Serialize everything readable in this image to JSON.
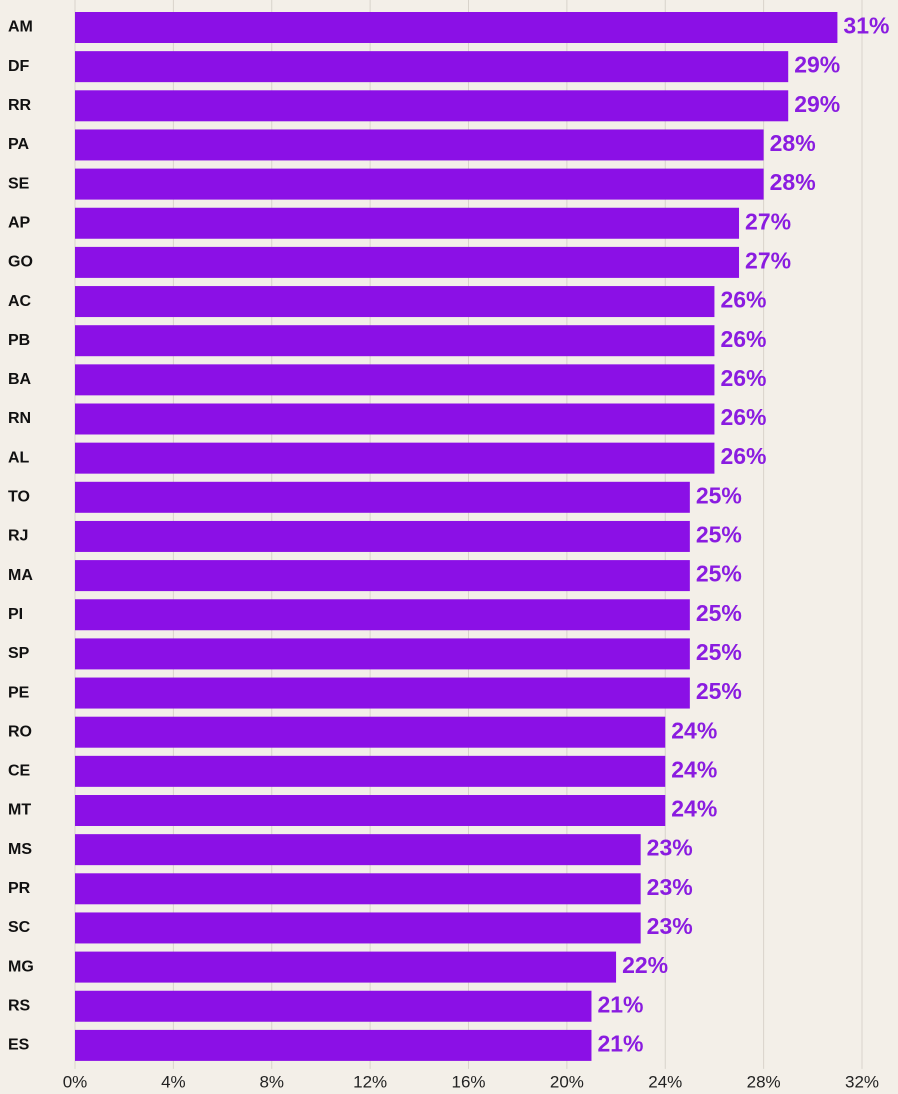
{
  "chart_data": {
    "type": "bar",
    "orientation": "horizontal",
    "color": "#8b10e6",
    "categories": [
      "AM",
      "DF",
      "RR",
      "PA",
      "SE",
      "AP",
      "GO",
      "AC",
      "PB",
      "BA",
      "RN",
      "AL",
      "TO",
      "RJ",
      "MA",
      "PI",
      "SP",
      "PE",
      "RO",
      "CE",
      "MT",
      "MS",
      "PR",
      "SC",
      "MG",
      "RS",
      "ES"
    ],
    "values": [
      31,
      29,
      29,
      28,
      28,
      27,
      27,
      26,
      26,
      26,
      26,
      26,
      25,
      25,
      25,
      25,
      25,
      25,
      24,
      24,
      24,
      23,
      23,
      23,
      22,
      21,
      21
    ],
    "value_labels": [
      "31%",
      "29%",
      "29%",
      "28%",
      "28%",
      "27%",
      "27%",
      "26%",
      "26%",
      "26%",
      "26%",
      "26%",
      "25%",
      "25%",
      "25%",
      "25%",
      "25%",
      "25%",
      "24%",
      "24%",
      "24%",
      "23%",
      "23%",
      "23%",
      "22%",
      "21%",
      "21%"
    ],
    "xlim": [
      0,
      32
    ],
    "xticks": [
      {
        "value": 0,
        "label": "0%"
      },
      {
        "value": 4,
        "label": "4%"
      },
      {
        "value": 8,
        "label": "8%"
      },
      {
        "value": 12,
        "label": "12%"
      },
      {
        "value": 16,
        "label": "16%"
      },
      {
        "value": 20,
        "label": "20%"
      },
      {
        "value": 24,
        "label": "24%"
      },
      {
        "value": 28,
        "label": "28%"
      },
      {
        "value": 32,
        "label": "32%"
      }
    ],
    "grid": true
  }
}
